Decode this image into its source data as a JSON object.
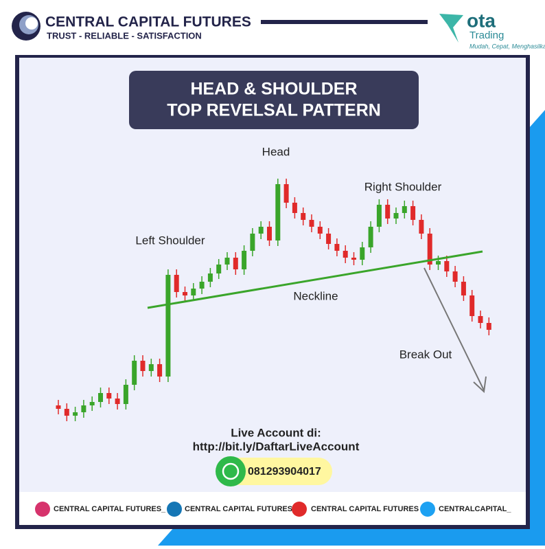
{
  "header": {
    "brand": "CENTRAL CAPITAL FUTURES",
    "tagline": "TRUST - RELIABLE - SATISFACTION",
    "partner": "ota",
    "partner_sub": "Trading",
    "partner_slogan": "Mudah, Cepat, Menghasilkan!"
  },
  "title": {
    "line1": "HEAD & SHOULDER",
    "line2": "TOP REVELSAL PATTERN"
  },
  "labels": {
    "head": "Head",
    "right_shoulder": "Right Shoulder",
    "left_shoulder": "Left Shoulder",
    "neckline": "Neckline",
    "break_out": "Break Out"
  },
  "cta": {
    "line1": "Live Account di:",
    "url": "http://bit.ly/DaftarLiveAccount",
    "phone": "081293904017"
  },
  "footer": {
    "instagram": "CENTRAL CAPITAL FUTURES_",
    "linkedin": "CENTRAL CAPITAL FUTURES",
    "youtube": "CENTRAL CAPITAL FUTURES",
    "twitter": "CENTRALCAPITAL_"
  }
}
